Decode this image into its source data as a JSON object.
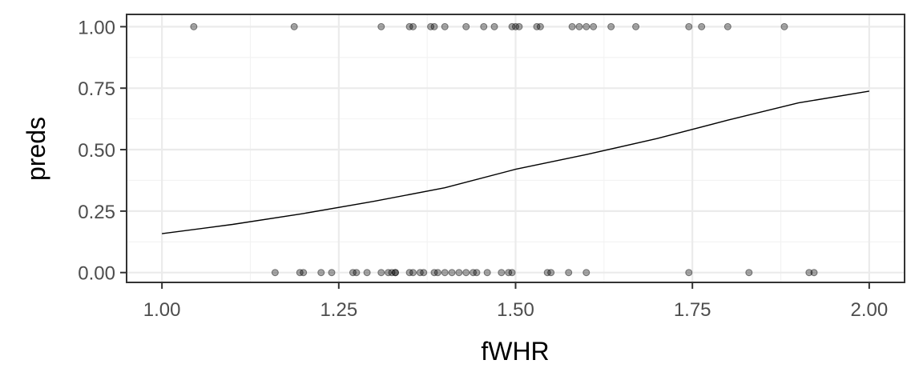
{
  "chart_data": {
    "type": "scatter",
    "xlabel": "fWHR",
    "ylabel": "preds",
    "xlim": [
      0.95,
      2.05
    ],
    "ylim": [
      -0.04,
      1.05
    ],
    "x_ticks": [
      "1.00",
      "1.25",
      "1.50",
      "1.75",
      "2.00"
    ],
    "y_ticks": [
      "0.00",
      "0.25",
      "0.50",
      "0.75",
      "1.00"
    ],
    "x_tick_values": [
      1.0,
      1.25,
      1.5,
      1.75,
      2.0
    ],
    "y_tick_values": [
      0.0,
      0.25,
      0.5,
      0.75,
      1.0
    ],
    "grid": true,
    "points_y1": [
      1.045,
      1.187,
      1.31,
      1.35,
      1.355,
      1.38,
      1.385,
      1.4,
      1.43,
      1.455,
      1.47,
      1.495,
      1.5,
      1.505,
      1.53,
      1.535,
      1.58,
      1.59,
      1.6,
      1.61,
      1.635,
      1.67,
      1.745,
      1.763,
      1.8,
      1.88
    ],
    "points_y0": [
      1.16,
      1.195,
      1.2,
      1.225,
      1.24,
      1.27,
      1.275,
      1.29,
      1.31,
      1.32,
      1.325,
      1.33,
      1.33,
      1.35,
      1.355,
      1.365,
      1.37,
      1.385,
      1.39,
      1.4,
      1.41,
      1.42,
      1.43,
      1.44,
      1.445,
      1.46,
      1.48,
      1.49,
      1.495,
      1.545,
      1.55,
      1.575,
      1.6,
      1.745,
      1.83,
      1.915,
      1.922
    ],
    "fit_line": {
      "x": [
        1.0,
        1.1,
        1.2,
        1.3,
        1.4,
        1.5,
        1.6,
        1.7,
        1.8,
        1.9,
        2.0
      ],
      "y": [
        0.158,
        0.196,
        0.24,
        0.29,
        0.345,
        0.42,
        0.48,
        0.545,
        0.62,
        0.69,
        0.738
      ]
    }
  }
}
